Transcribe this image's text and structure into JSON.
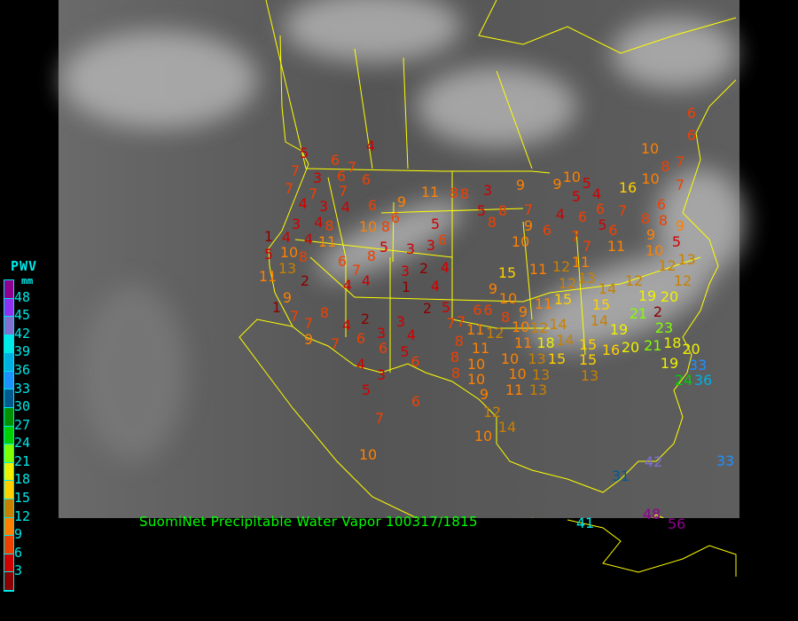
{
  "title": "SuomiNet Precipitable Water Vapor 100317/1815",
  "legend": {
    "title": "PWV",
    "unit": "mm",
    "ticks": [
      "48",
      "45",
      "42",
      "39",
      "36",
      "33",
      "30",
      "27",
      "24",
      "21",
      "18",
      "15",
      "12",
      "9",
      "6",
      "3"
    ],
    "colors": [
      "#900090",
      "#9030f0",
      "#8070d0",
      "#00e8e8",
      "#00b0e0",
      "#1e90ff",
      "#005a90",
      "#009000",
      "#00d000",
      "#80ff00",
      "#f0f000",
      "#ffd000",
      "#c88000",
      "#ff8000",
      "#f04000",
      "#d00000",
      "#8b0000"
    ]
  },
  "colors": {
    "background": "#000000",
    "boundaries": "#ffff00",
    "caption": "#00ff00",
    "legend_text": "#00e8e8"
  },
  "stations": [
    5,
    4,
    6,
    7,
    7,
    3,
    6,
    7,
    6,
    7,
    7,
    4,
    3,
    4,
    6,
    9,
    11,
    8,
    4,
    8,
    6,
    3,
    1,
    4,
    4,
    11,
    10,
    8,
    5,
    6,
    5,
    3,
    3,
    5,
    10,
    8,
    8,
    13,
    11,
    6,
    7,
    2,
    4,
    3,
    1,
    2,
    4,
    4,
    4,
    9,
    1,
    7,
    8,
    7,
    9,
    4,
    2,
    2,
    5,
    3,
    3,
    6,
    4,
    7,
    6,
    5,
    4,
    3,
    6,
    7,
    8,
    8,
    10,
    6,
    8,
    3,
    9,
    10,
    5,
    9,
    10,
    16,
    8,
    7,
    7,
    5,
    8,
    7,
    5,
    4,
    4,
    6,
    6,
    5,
    7,
    8,
    6,
    8,
    8,
    9,
    9,
    10,
    6,
    7,
    6,
    11,
    9,
    10,
    5,
    7,
    11,
    11,
    12,
    15,
    13,
    12,
    13,
    12,
    12,
    12,
    14,
    9,
    10,
    15,
    11,
    15,
    19,
    20,
    21,
    2,
    6,
    9,
    7,
    8,
    11,
    12,
    10,
    12,
    14,
    14,
    14,
    19,
    23,
    21,
    18,
    20,
    11,
    11,
    18,
    13,
    15,
    15,
    16,
    20,
    8,
    10,
    10,
    10,
    13,
    15,
    13,
    19,
    33,
    24,
    36,
    13,
    9,
    11,
    6,
    6,
    10,
    12,
    14,
    10,
    5,
    7,
    6,
    10,
    31,
    42,
    33,
    41,
    48,
    56
  ]
}
